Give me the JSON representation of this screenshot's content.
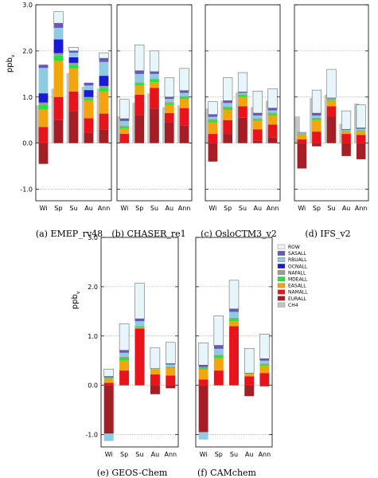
{
  "chart_data": {
    "type": "bar",
    "stacked": true,
    "ylabel": "ppb",
    "ylabel_subscript": "v",
    "categories": [
      "Wi",
      "Sp",
      "Su",
      "Au",
      "Ann"
    ],
    "yticks": [
      "-1.0",
      "0.0",
      "1.0",
      "2.0",
      "3.0"
    ],
    "grid": "dashed horizontal",
    "legend": {
      "placement": "right of panel (e)",
      "entries": [
        {
          "key": "ROW",
          "label": "ROW",
          "color": "#e6f6fa"
        },
        {
          "key": "SAS",
          "label": "SASALL",
          "color": "#6a56b7"
        },
        {
          "key": "RBU",
          "label": "RBUALL",
          "color": "#8fcbe2"
        },
        {
          "key": "OCN",
          "label": "OCNALL",
          "color": "#1a1ad6"
        },
        {
          "key": "NAF",
          "label": "NAFALL",
          "color": "#9b9b9b"
        },
        {
          "key": "MDE",
          "label": "MDEALL",
          "color": "#22e43a"
        },
        {
          "key": "EAS",
          "label": "EASALL",
          "color": "#f4a40c"
        },
        {
          "key": "NAM",
          "label": "NAMALL",
          "color": "#e8131b"
        },
        {
          "key": "EUR",
          "label": "EURALL",
          "color": "#a51e25"
        },
        {
          "key": "CH4",
          "label": "CH4",
          "color": "#c4c4c4"
        }
      ]
    },
    "panels": [
      {
        "caption": "(a) EMEP_rv48",
        "ylim": [
          -1.25,
          3.0
        ],
        "ch4": [
          0.82,
          1.18,
          1.52,
          1.22,
          1.18
        ],
        "bars": [
          {
            "EUR": -0.45,
            "NAM": 0.35,
            "EAS": 0.38,
            "MDE": 0.1,
            "NAF": 0.05,
            "OCN": 0.2,
            "RBU": 0.55,
            "SAS": 0.07,
            "ROW": 0.0
          },
          {
            "EUR": 0.5,
            "NAM": 0.5,
            "EAS": 0.78,
            "MDE": 0.12,
            "NAF": 0.05,
            "OCN": 0.3,
            "RBU": 0.25,
            "SAS": 0.1,
            "ROW": 0.25
          },
          {
            "EUR": 0.7,
            "NAM": 0.42,
            "EAS": 0.5,
            "MDE": 0.08,
            "NAF": 0.04,
            "OCN": 0.12,
            "RBU": 0.1,
            "SAS": 0.04,
            "ROW": 0.08
          },
          {
            "EUR": 0.22,
            "NAM": 0.32,
            "EAS": 0.38,
            "MDE": 0.05,
            "NAF": 0.03,
            "OCN": 0.15,
            "RBU": 0.1,
            "SAS": 0.06,
            "ROW": 0.0
          },
          {
            "EUR": 0.3,
            "NAM": 0.34,
            "EAS": 0.48,
            "MDE": 0.08,
            "NAF": 0.04,
            "OCN": 0.22,
            "RBU": 0.3,
            "SAS": 0.08,
            "ROW": 0.12
          }
        ]
      },
      {
        "caption": "(b) CHASER_re1",
        "ylim": [
          -1.25,
          3.0
        ],
        "ch4": [
          0.58,
          0.88,
          1.08,
          0.78,
          0.82
        ],
        "bars": [
          {
            "EUR": 0.0,
            "NAM": 0.2,
            "EAS": 0.12,
            "MDE": 0.04,
            "NAF": 0.02,
            "OCN": 0.0,
            "RBU": 0.1,
            "SAS": 0.05,
            "ROW": 0.42
          },
          {
            "EUR": 0.6,
            "NAM": 0.45,
            "EAS": 0.2,
            "MDE": 0.05,
            "NAF": 0.02,
            "OCN": 0.0,
            "RBU": 0.18,
            "SAS": 0.07,
            "ROW": 0.56
          },
          {
            "EUR": 0.75,
            "NAM": 0.45,
            "EAS": 0.12,
            "MDE": 0.06,
            "NAF": 0.02,
            "OCN": 0.0,
            "RBU": 0.1,
            "SAS": 0.05,
            "ROW": 0.45
          },
          {
            "EUR": 0.45,
            "NAM": 0.2,
            "EAS": 0.18,
            "MDE": 0.04,
            "NAF": 0.02,
            "OCN": 0.0,
            "RBU": 0.07,
            "SAS": 0.04,
            "ROW": 0.42
          },
          {
            "EUR": 0.38,
            "NAM": 0.38,
            "EAS": 0.2,
            "MDE": 0.04,
            "NAF": 0.02,
            "OCN": 0.0,
            "RBU": 0.07,
            "SAS": 0.05,
            "ROW": 0.48
          }
        ]
      },
      {
        "caption": "(c) OsloCTM3_v2",
        "ylim": [
          -1.25,
          3.0
        ],
        "ch4": [
          0.75,
          0.92,
          1.1,
          0.78,
          0.92
        ],
        "bars": [
          {
            "EUR": -0.4,
            "NAM": 0.2,
            "EAS": 0.25,
            "MDE": 0.05,
            "NAF": 0.02,
            "OCN": 0.0,
            "RBU": 0.05,
            "SAS": 0.05,
            "ROW": 0.28
          },
          {
            "EUR": 0.2,
            "NAM": 0.3,
            "EAS": 0.22,
            "MDE": 0.05,
            "NAF": 0.02,
            "OCN": 0.0,
            "RBU": 0.08,
            "SAS": 0.05,
            "ROW": 0.5
          },
          {
            "EUR": 0.55,
            "NAM": 0.25,
            "EAS": 0.2,
            "MDE": 0.04,
            "NAF": 0.02,
            "OCN": 0.0,
            "RBU": 0.03,
            "SAS": 0.02,
            "ROW": 0.42
          },
          {
            "EUR": 0.05,
            "NAM": 0.25,
            "EAS": 0.18,
            "MDE": 0.03,
            "NAF": 0.02,
            "OCN": 0.0,
            "RBU": 0.07,
            "SAS": 0.05,
            "ROW": 0.48
          },
          {
            "EUR": 0.12,
            "NAM": 0.28,
            "EAS": 0.2,
            "MDE": 0.04,
            "NAF": 0.02,
            "OCN": 0.0,
            "RBU": 0.05,
            "SAS": 0.05,
            "ROW": 0.42
          }
        ]
      },
      {
        "caption": "(d) IFS_v2",
        "ylim": [
          -1.25,
          3.0
        ],
        "ch4": [
          0.58,
          0.98,
          1.05,
          0.42,
          0.86
        ],
        "bars": [
          {
            "EUR": -0.55,
            "NAM": 0.08,
            "EAS": 0.1,
            "MDE": 0.01,
            "NAF": 0.02,
            "OCN": 0.0,
            "RBU": 0.02,
            "SAS": 0.01,
            "ROW": 0.0
          },
          {
            "EUR": -0.07,
            "NAM": 0.25,
            "EAS": 0.25,
            "MDE": 0.03,
            "NAF": 0.02,
            "OCN": 0.0,
            "RBU": 0.05,
            "SAS": 0.05,
            "ROW": 0.5
          },
          {
            "EUR": 0.58,
            "NAM": 0.22,
            "EAS": 0.12,
            "MDE": 0.02,
            "NAF": 0.02,
            "OCN": 0.0,
            "RBU": 0.01,
            "SAS": 0.01,
            "ROW": 0.62
          },
          {
            "EUR": -0.28,
            "NAM": 0.2,
            "EAS": 0.05,
            "MDE": 0.01,
            "NAF": 0.01,
            "OCN": 0.0,
            "RBU": 0.02,
            "SAS": 0.01,
            "ROW": 0.4
          },
          {
            "EUR": -0.35,
            "NAM": 0.18,
            "EAS": 0.08,
            "MDE": 0.01,
            "NAF": 0.01,
            "OCN": 0.0,
            "RBU": 0.03,
            "SAS": 0.02,
            "ROW": 0.5
          }
        ]
      },
      {
        "caption": "(e) GEOS-Chem",
        "ylim": [
          -1.25,
          3.0
        ],
        "ch4": [
          0,
          0,
          0,
          0,
          0
        ],
        "bars": [
          {
            "EUR": -0.98,
            "NAM": 0.05,
            "EAS": 0.08,
            "MDE": 0.02,
            "NAF": 0.01,
            "OCN": 0.0,
            "RBU": -0.15,
            "SAS": 0.02,
            "ROW": 0.15
          },
          {
            "EUR": 0.02,
            "NAM": 0.28,
            "EAS": 0.2,
            "MDE": 0.06,
            "NAF": 0.02,
            "OCN": 0.0,
            "RBU": 0.08,
            "SAS": 0.05,
            "ROW": 0.54
          },
          {
            "EUR": 0.0,
            "NAM": 1.15,
            "EAS": 0.02,
            "MDE": 0.02,
            "NAF": 0.01,
            "OCN": 0.0,
            "RBU": 0.1,
            "SAS": 0.05,
            "ROW": 0.72
          },
          {
            "EUR": -0.18,
            "NAM": 0.22,
            "EAS": 0.1,
            "MDE": 0.01,
            "NAF": 0.01,
            "OCN": 0.0,
            "RBU": 0.0,
            "SAS": 0.0,
            "ROW": 0.42
          },
          {
            "EUR": -0.06,
            "NAM": 0.2,
            "EAS": 0.15,
            "MDE": 0.02,
            "NAF": 0.01,
            "OCN": 0.0,
            "RBU": 0.04,
            "SAS": 0.02,
            "ROW": 0.43
          }
        ]
      },
      {
        "caption": "(f) CAMchem",
        "ylim": [
          -1.25,
          3.0
        ],
        "ch4": [
          0,
          0,
          0,
          0,
          0
        ],
        "bars": [
          {
            "EUR": -0.95,
            "NAM": 0.12,
            "EAS": 0.2,
            "MDE": 0.03,
            "NAF": 0.02,
            "OCN": 0.0,
            "RBU": -0.15,
            "SAS": 0.04,
            "ROW": 0.45
          },
          {
            "EUR": 0.0,
            "NAM": 0.3,
            "EAS": 0.25,
            "MDE": 0.05,
            "NAF": 0.02,
            "OCN": 0.0,
            "RBU": 0.12,
            "SAS": 0.07,
            "ROW": 0.6
          },
          {
            "EUR": 0.0,
            "NAM": 1.2,
            "EAS": 0.1,
            "MDE": 0.05,
            "NAF": 0.02,
            "OCN": 0.0,
            "RBU": 0.12,
            "SAS": 0.06,
            "ROW": 0.58
          },
          {
            "EUR": -0.22,
            "NAM": 0.18,
            "EAS": 0.05,
            "MDE": 0.01,
            "NAF": 0.01,
            "OCN": 0.0,
            "RBU": 0.0,
            "SAS": 0.0,
            "ROW": 0.5
          },
          {
            "EUR": -0.02,
            "NAM": 0.25,
            "EAS": 0.15,
            "MDE": 0.03,
            "NAF": 0.01,
            "OCN": 0.0,
            "RBU": 0.06,
            "SAS": 0.04,
            "ROW": 0.5
          }
        ]
      }
    ]
  }
}
